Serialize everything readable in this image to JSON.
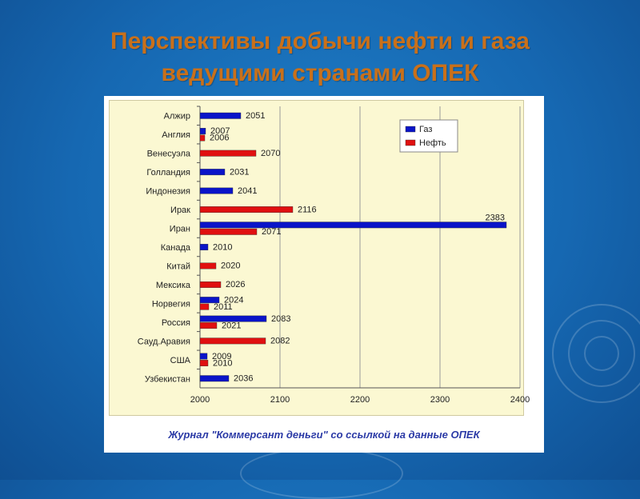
{
  "page": {
    "title_line1": "Перспективы добычи нефти и газа",
    "title_line2": "ведущими странами ОПЕК",
    "caption": "Журнал \"Коммерсант деньги\" со ссылкой на данные ОПЕК"
  },
  "colors": {
    "gas": "#0a14c8",
    "oil": "#e01010",
    "title": "#c9701a",
    "plot_bg": "#fbf8d2"
  },
  "chart_data": {
    "type": "bar",
    "orientation": "horizontal",
    "categories": [
      "Алжир",
      "Англия",
      "Венесуэла",
      "Голландия",
      "Индонезия",
      "Ирак",
      "Иран",
      "Канада",
      "Китай",
      "Мексика",
      "Норвегия",
      "Россия",
      "Сауд.Аравия",
      "США",
      "Узбекистан"
    ],
    "series": [
      {
        "name": "Газ",
        "values": [
          2051,
          2007,
          null,
          2031,
          2041,
          null,
          2383,
          2010,
          null,
          null,
          2024,
          2083,
          null,
          2009,
          2036
        ]
      },
      {
        "name": "Нефть",
        "values": [
          null,
          2006,
          2070,
          null,
          null,
          2116,
          2071,
          null,
          2020,
          2026,
          2011,
          2021,
          2082,
          2010,
          null
        ]
      }
    ],
    "xlim": [
      2000,
      2400
    ],
    "xticks": [
      2000,
      2100,
      2200,
      2300,
      2400
    ],
    "legend_position": "top-right",
    "grid": true
  }
}
